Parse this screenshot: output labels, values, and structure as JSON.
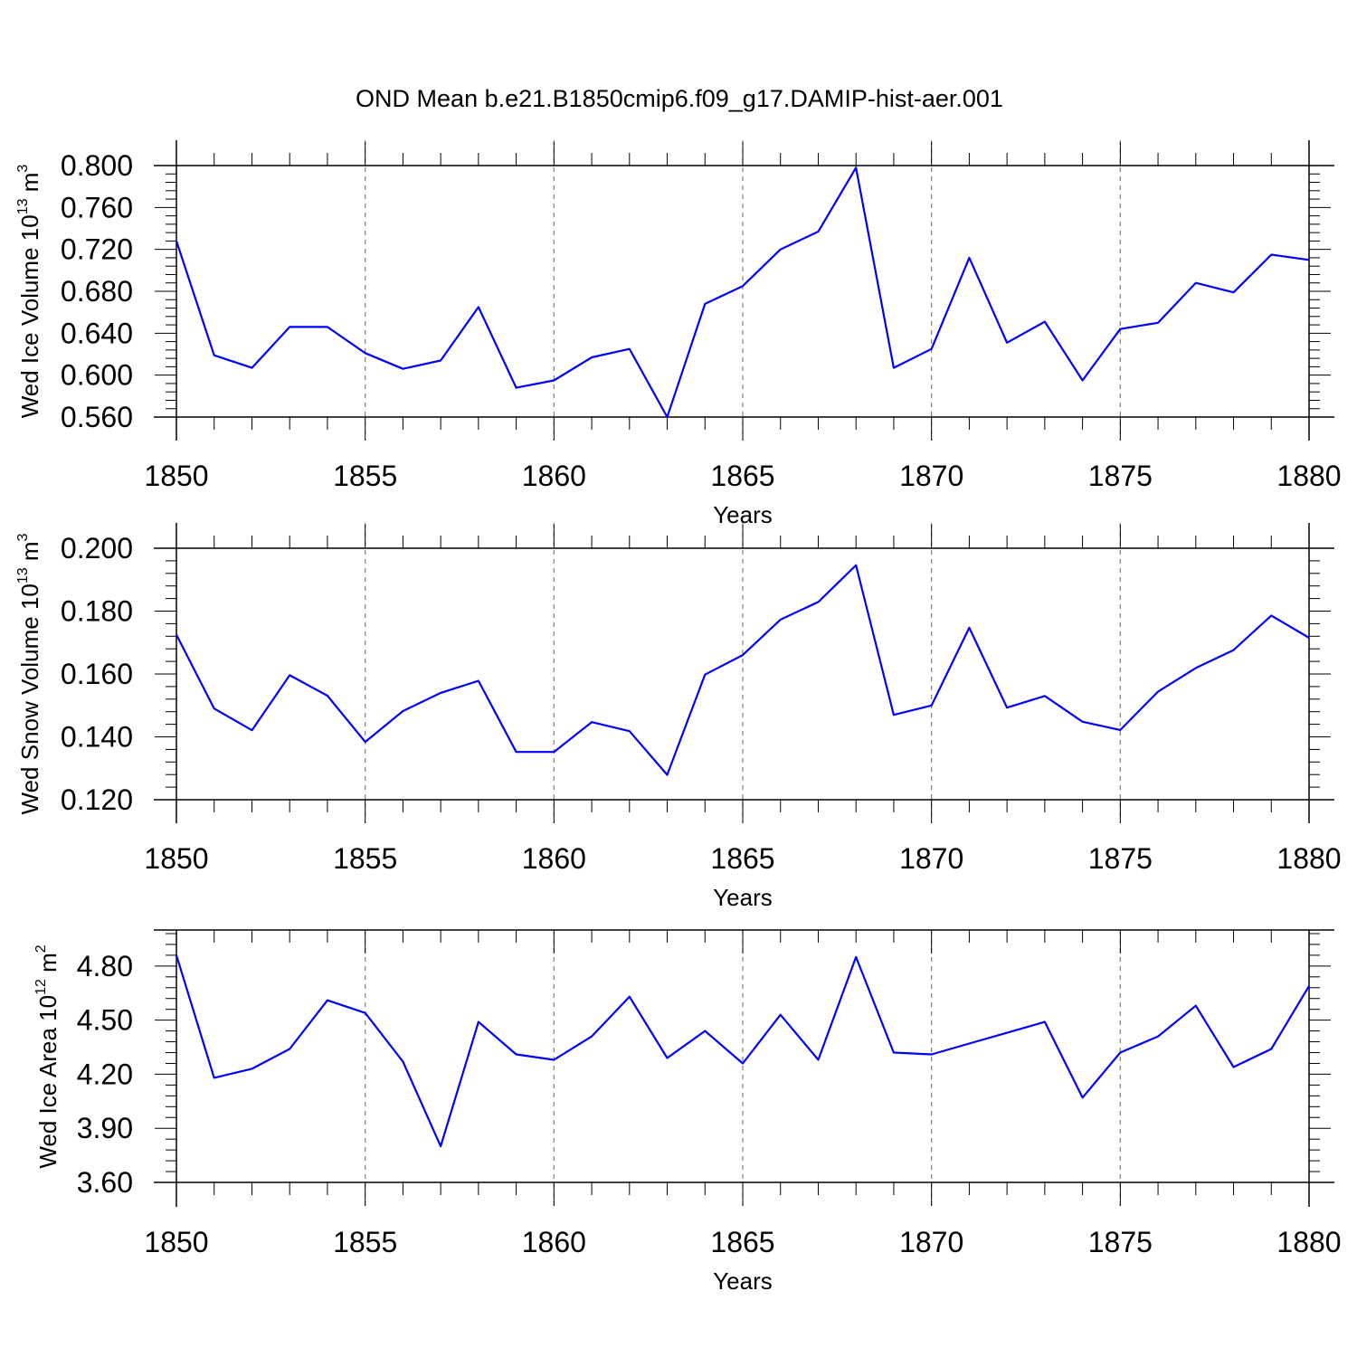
{
  "title": "OND Mean b.e21.B1850cmip6.f09_g17.DAMIP-hist-aer.001",
  "colors": {
    "line": "#0000ff",
    "axis": "#000000",
    "grid": "#808080"
  },
  "chart_data": [
    {
      "type": "line",
      "ylabel": {
        "text": "Wed Ice Volume 10",
        "exp": "13",
        "unit": "m",
        "unit_exp": "3"
      },
      "xlabel": "Years",
      "xlim": [
        1850,
        1880
      ],
      "ylim": [
        0.56,
        0.8
      ],
      "yticks": [
        "0.800",
        "0.760",
        "0.720",
        "0.680",
        "0.640",
        "0.600",
        "0.560"
      ],
      "ytick_values": [
        0.8,
        0.76,
        0.72,
        0.68,
        0.64,
        0.6,
        0.56
      ],
      "xticks": [
        "1850",
        "1855",
        "1860",
        "1865",
        "1870",
        "1875",
        "1880"
      ],
      "x": [
        1850,
        1851,
        1852,
        1853,
        1854,
        1855,
        1856,
        1857,
        1858,
        1859,
        1860,
        1861,
        1862,
        1863,
        1864,
        1865,
        1866,
        1867,
        1868,
        1869,
        1870,
        1871,
        1872,
        1873,
        1874,
        1875,
        1876,
        1877,
        1878,
        1879,
        1880
      ],
      "series": [
        {
          "name": "Wed Ice Volume",
          "values": [
            0.728,
            0.619,
            0.607,
            0.646,
            0.646,
            0.621,
            0.606,
            0.614,
            0.665,
            0.588,
            0.595,
            0.617,
            0.625,
            0.56,
            0.668,
            0.685,
            0.72,
            0.737,
            0.798,
            0.607,
            0.625,
            0.712,
            0.631,
            0.651,
            0.595,
            0.644,
            0.65,
            0.688,
            0.679,
            0.715,
            0.71
          ]
        }
      ]
    },
    {
      "type": "line",
      "ylabel": {
        "text": "Wed Snow Volume 10",
        "exp": "13",
        "unit": "m",
        "unit_exp": "3"
      },
      "xlabel": "Years",
      "xlim": [
        1850,
        1880
      ],
      "ylim": [
        0.12,
        0.2
      ],
      "yticks": [
        "0.200",
        "0.180",
        "0.160",
        "0.140",
        "0.120"
      ],
      "ytick_values": [
        0.2,
        0.18,
        0.16,
        0.14,
        0.12
      ],
      "xticks": [
        "1850",
        "1855",
        "1860",
        "1865",
        "1870",
        "1875",
        "1880"
      ],
      "x": [
        1850,
        1851,
        1852,
        1853,
        1854,
        1855,
        1856,
        1857,
        1858,
        1859,
        1860,
        1861,
        1862,
        1863,
        1864,
        1865,
        1866,
        1867,
        1868,
        1869,
        1870,
        1871,
        1872,
        1873,
        1874,
        1875,
        1876,
        1877,
        1878,
        1879,
        1880
      ],
      "series": [
        {
          "name": "Wed Snow Volume",
          "values": [
            0.1725,
            0.149,
            0.1421,
            0.1596,
            0.1531,
            0.1384,
            0.1482,
            0.154,
            0.1578,
            0.1352,
            0.1352,
            0.1447,
            0.1418,
            0.1279,
            0.1598,
            0.166,
            0.1773,
            0.1829,
            0.1946,
            0.147,
            0.15,
            0.1747,
            0.1493,
            0.153,
            0.1448,
            0.1422,
            0.1544,
            0.1619,
            0.1676,
            0.1786,
            0.1715
          ]
        }
      ]
    },
    {
      "type": "line",
      "ylabel": {
        "text": "Wed Ice Area 10",
        "exp": "12",
        "unit": "m",
        "unit_exp": "2"
      },
      "xlabel": "Years",
      "xlim": [
        1850,
        1880
      ],
      "ylim": [
        3.6,
        5.0
      ],
      "yticks": [
        "4.80",
        "4.50",
        "4.20",
        "3.90",
        "3.60"
      ],
      "ytick_values": [
        4.8,
        4.5,
        4.2,
        3.9,
        3.6
      ],
      "xticks": [
        "1850",
        "1855",
        "1860",
        "1865",
        "1870",
        "1875",
        "1880"
      ],
      "x": [
        1850,
        1851,
        1852,
        1853,
        1854,
        1855,
        1856,
        1857,
        1858,
        1859,
        1860,
        1861,
        1862,
        1863,
        1864,
        1865,
        1866,
        1867,
        1868,
        1869,
        1870,
        1871,
        1872,
        1873,
        1874,
        1875,
        1876,
        1877,
        1878,
        1879,
        1880
      ],
      "series": [
        {
          "name": "Wed Ice Area",
          "values": [
            4.86,
            4.18,
            4.23,
            4.34,
            4.61,
            4.54,
            4.27,
            3.8,
            4.49,
            4.31,
            4.28,
            4.41,
            4.63,
            4.29,
            4.44,
            4.26,
            4.53,
            4.28,
            4.85,
            4.32,
            4.31,
            4.37,
            4.43,
            4.49,
            4.07,
            4.32,
            4.41,
            4.58,
            4.24,
            4.34,
            4.69
          ]
        }
      ]
    }
  ]
}
